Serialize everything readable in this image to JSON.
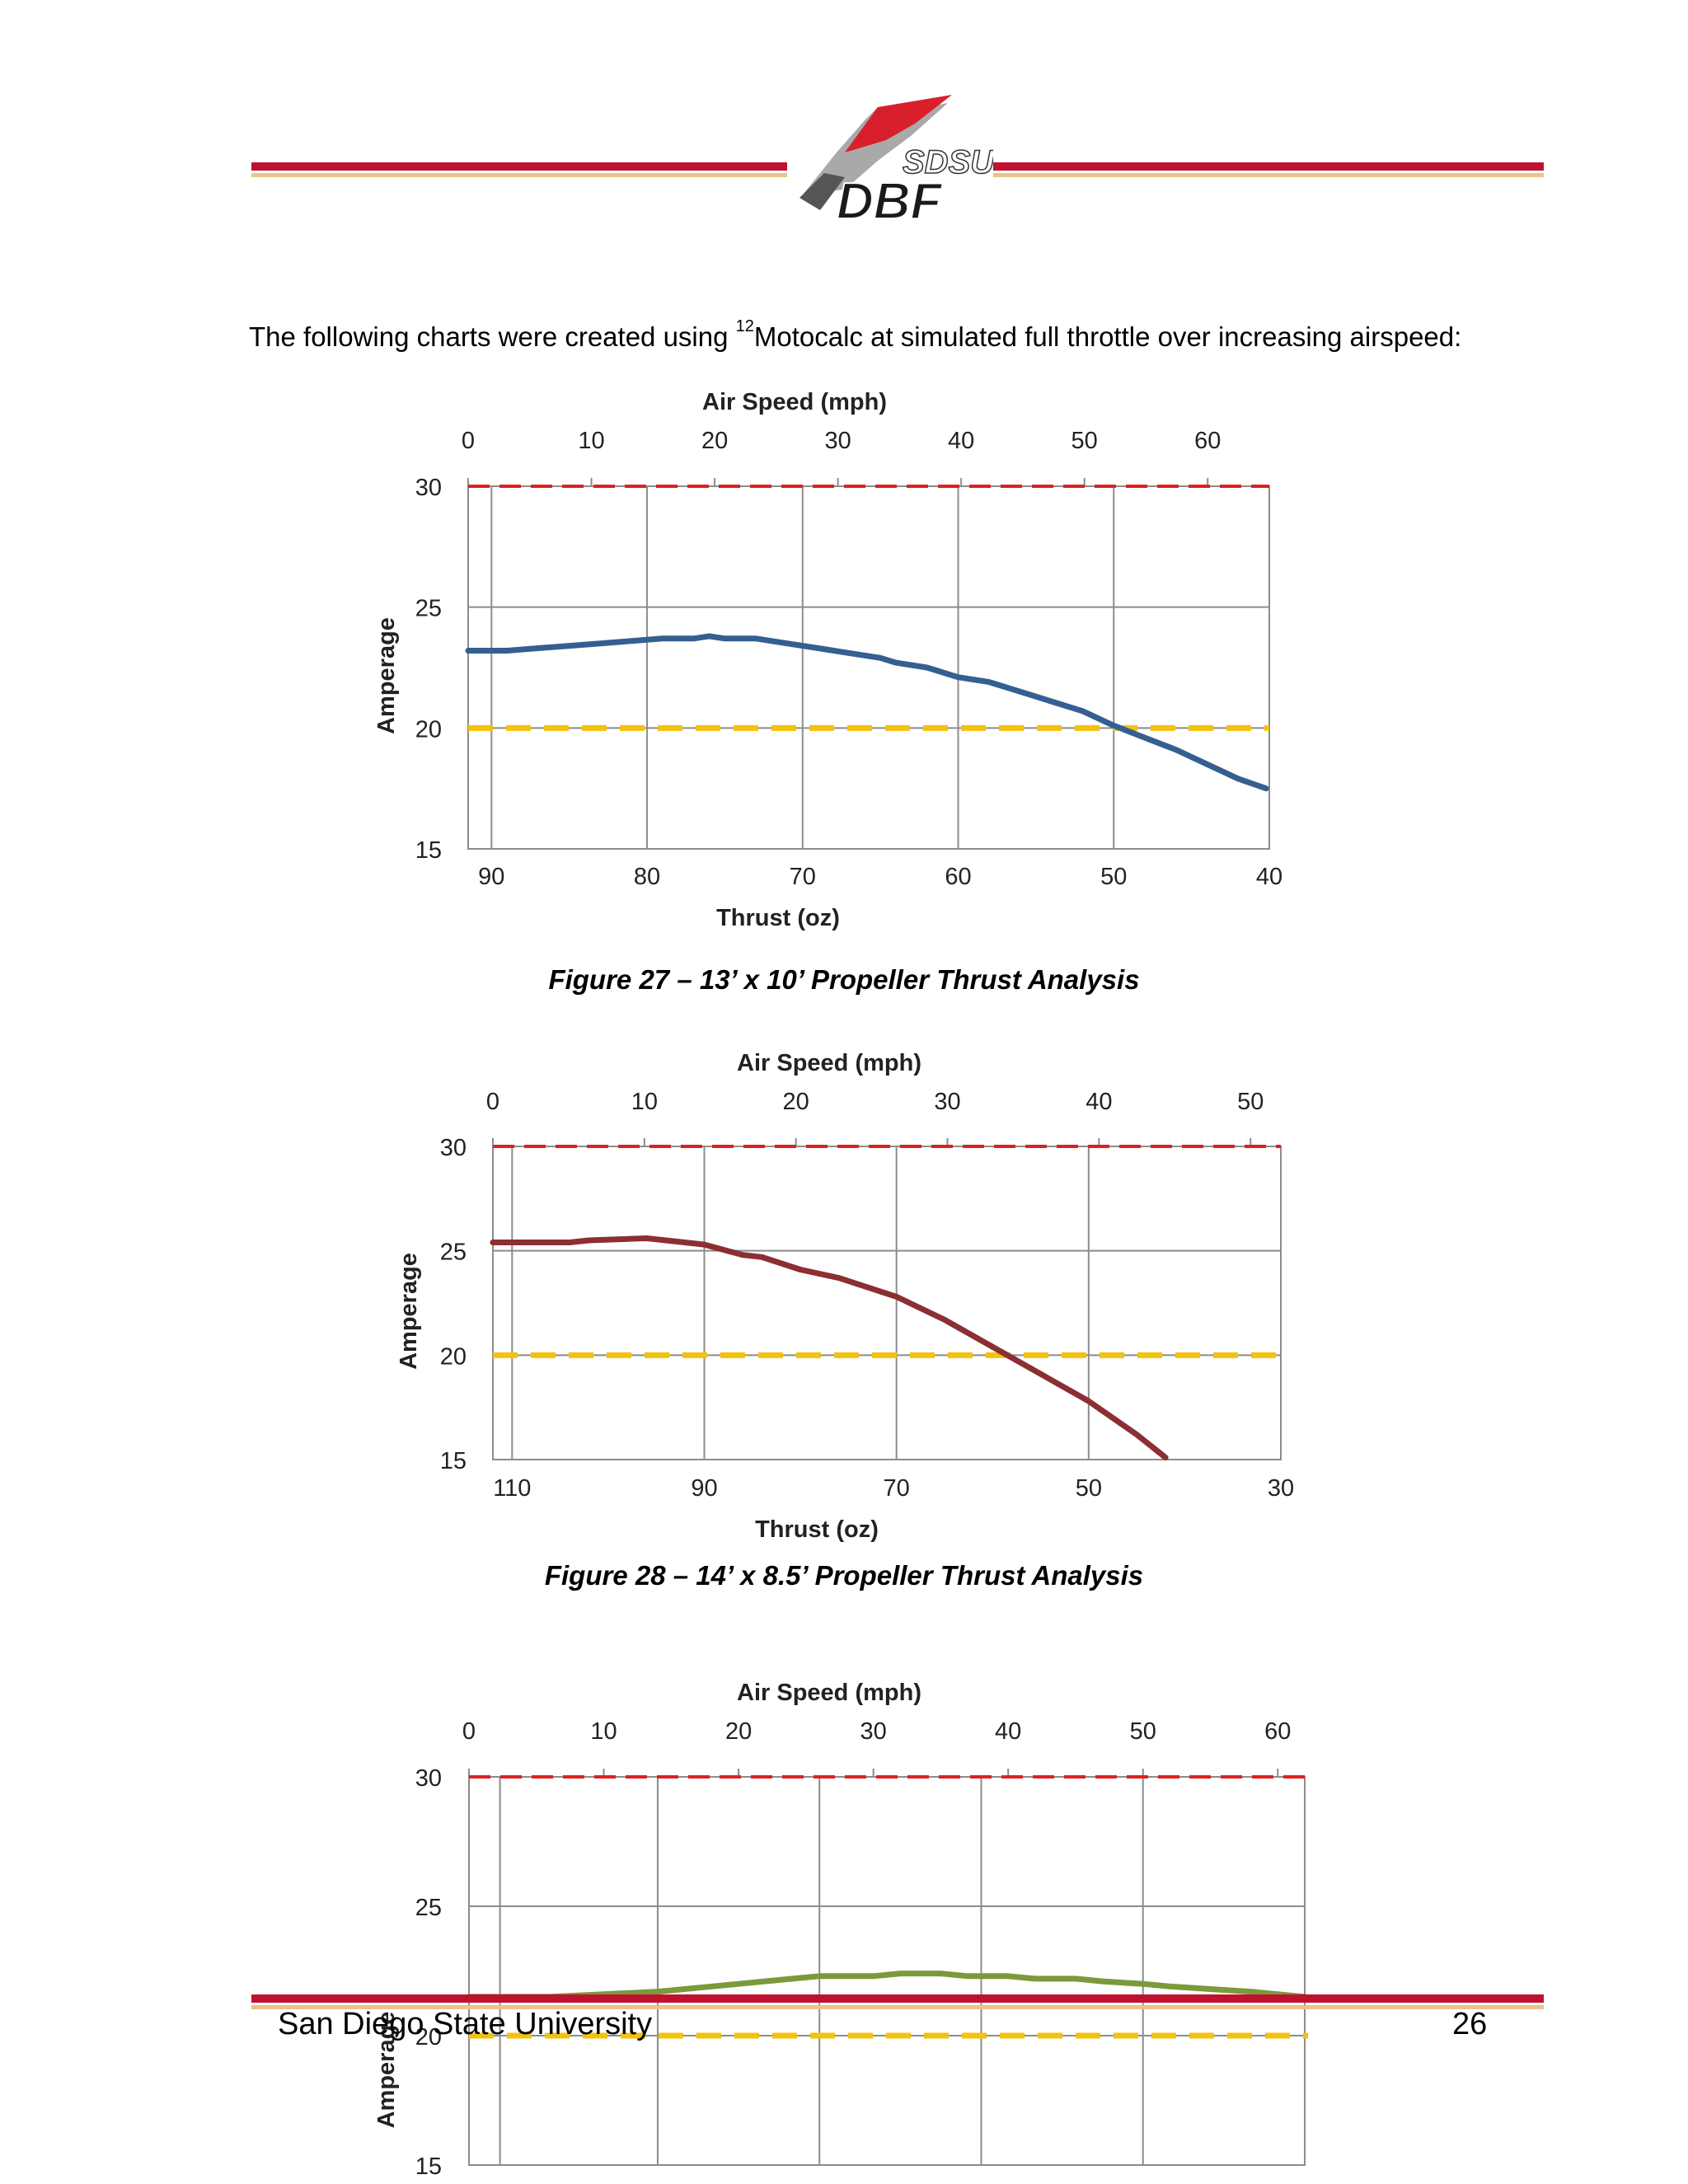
{
  "header": {
    "logo_top_text": "SDSU",
    "logo_bottom_text": "DBF",
    "colors": {
      "band_red": "#c0122f",
      "band_gold": "#e7c48a"
    }
  },
  "intro": {
    "text_before": "The following charts were created using ",
    "footnote_ref": "12",
    "text_after": "Motocalc at simulated full throttle over increasing airspeed:"
  },
  "chart_data": [
    {
      "type": "line",
      "title": "",
      "xlabel": "Thrust (oz)",
      "x2label": "Air Speed (mph)",
      "ylabel": "Amperage",
      "ylim": [
        15,
        30
      ],
      "yticks": [
        15,
        20,
        25,
        30
      ],
      "xlim": [
        91.5,
        40
      ],
      "xticks": [
        90,
        80,
        70,
        60,
        50,
        40
      ],
      "x2lim": [
        0,
        65
      ],
      "x2ticks": [
        0,
        10,
        20,
        30,
        40,
        50,
        60
      ],
      "grid": true,
      "limit_lines": [
        {
          "y": 30,
          "color": "#e02020"
        },
        {
          "y": 20,
          "color": "#f4c20d"
        }
      ],
      "series": [
        {
          "color": "#345f91",
          "x": [
            91.5,
            89,
            87,
            85,
            83,
            81,
            79,
            77,
            76,
            75,
            73,
            71,
            69,
            67,
            65,
            64,
            62,
            60,
            58,
            56,
            54,
            52,
            50,
            48,
            46,
            44,
            42,
            40.2
          ],
          "y": [
            23.2,
            23.2,
            23.3,
            23.4,
            23.5,
            23.6,
            23.7,
            23.7,
            23.8,
            23.7,
            23.7,
            23.5,
            23.3,
            23.1,
            22.9,
            22.7,
            22.5,
            22.1,
            21.9,
            21.5,
            21.1,
            20.7,
            20.1,
            19.6,
            19.1,
            18.5,
            17.9,
            17.5
          ]
        }
      ]
    },
    {
      "type": "line",
      "title": "",
      "xlabel": "Thrust (oz)",
      "x2label": "Air Speed (mph)",
      "ylabel": "Amperage",
      "ylim": [
        15,
        30
      ],
      "yticks": [
        15,
        20,
        25,
        30
      ],
      "xlim": [
        112,
        30
      ],
      "xticks": [
        110,
        90,
        70,
        50,
        30
      ],
      "x2lim": [
        0,
        52
      ],
      "x2ticks": [
        0,
        10,
        20,
        30,
        40,
        50
      ],
      "grid": true,
      "limit_lines": [
        {
          "y": 30,
          "color": "#e02020"
        },
        {
          "y": 20,
          "color": "#f4c20d"
        }
      ],
      "series": [
        {
          "color": "#8b2f33",
          "x": [
            112,
            104,
            102,
            96,
            94,
            90,
            86,
            84,
            80,
            76,
            70,
            65,
            60,
            55,
            50,
            45,
            42
          ],
          "y": [
            25.4,
            25.4,
            25.5,
            25.6,
            25.5,
            25.3,
            24.8,
            24.7,
            24.1,
            23.7,
            22.8,
            21.7,
            20.4,
            19.1,
            17.8,
            16.2,
            15.1
          ]
        }
      ]
    },
    {
      "type": "line",
      "title": "",
      "xlabel": "",
      "x2label": "Air Speed (mph)",
      "ylabel": "Amperage",
      "ylim": [
        15,
        30
      ],
      "yticks": [
        15,
        20,
        25,
        30
      ],
      "xlim": [
        0,
        62
      ],
      "xticks": [],
      "x2lim": [
        0,
        62
      ],
      "x2ticks": [
        0,
        10,
        20,
        30,
        40,
        50,
        60
      ],
      "grid": true,
      "limit_lines": [
        {
          "y": 30,
          "color": "#e02020"
        },
        {
          "y": 20,
          "color": "#f4c20d"
        }
      ],
      "series": [
        {
          "color": "#7a9a3c",
          "x": [
            0,
            6,
            10,
            14,
            18,
            20,
            24,
            26,
            30,
            32,
            35,
            37,
            40,
            42,
            45,
            47,
            50,
            52,
            55,
            58,
            62
          ],
          "y": [
            21.5,
            21.5,
            21.6,
            21.7,
            21.9,
            22.0,
            22.2,
            22.3,
            22.3,
            22.4,
            22.4,
            22.3,
            22.3,
            22.2,
            22.2,
            22.1,
            22.0,
            21.9,
            21.8,
            21.7,
            21.5
          ]
        }
      ]
    }
  ],
  "captions": [
    "Figure 27 – 13’ x 10’ Propeller Thrust Analysis",
    "Figure 28 – 14’ x 8.5’ Propeller Thrust Analysis"
  ],
  "footer": {
    "university": "San Diego State University",
    "page_number": "26"
  }
}
